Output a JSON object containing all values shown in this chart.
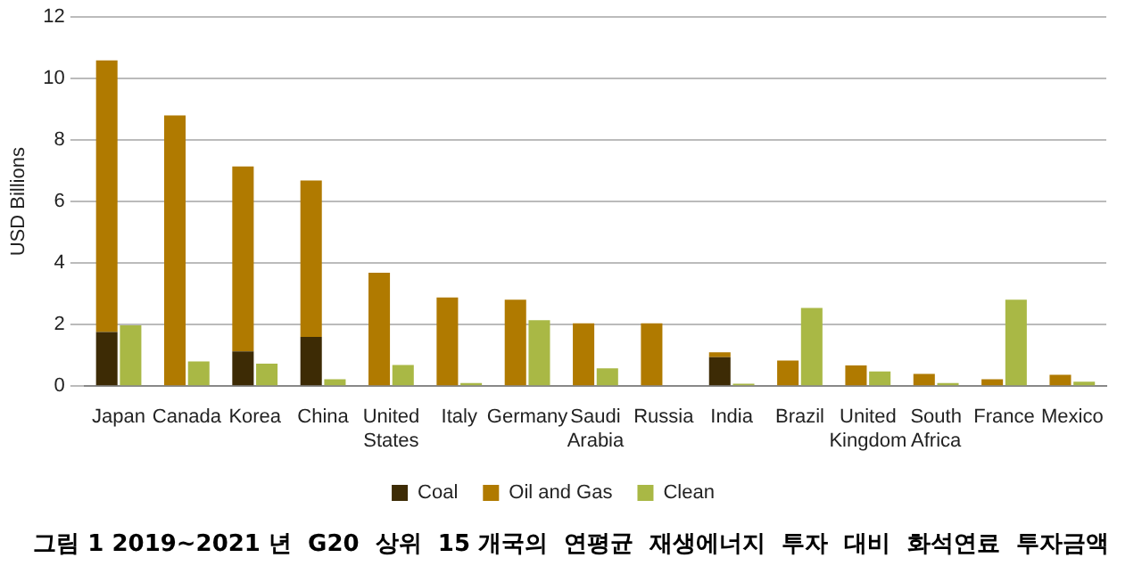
{
  "chart_data": {
    "type": "bar",
    "title": "그림 1 2019~2021 년  G20  상위  15 개국의  연평균  재생에너지  투자  대비  화석연료  투자금액",
    "ylabel": "USD Billions",
    "categories": [
      "Japan",
      "Canada",
      "Korea",
      "China",
      "United States",
      "Italy",
      "Germany",
      "Saudi Arabia",
      "Russia",
      "India",
      "Brazil",
      "United Kingdom",
      "South Africa",
      "France",
      "Mexico"
    ],
    "series": [
      {
        "name": "Coal",
        "color": "#3d2b05",
        "values": [
          1.76,
          0,
          1.13,
          1.6,
          0,
          0,
          0,
          0,
          0,
          0.94,
          0,
          0,
          0,
          0,
          0
        ]
      },
      {
        "name": "Oil and Gas",
        "color": "#b07a00",
        "base": [
          1.76,
          0,
          1.13,
          1.6,
          0,
          0,
          0,
          0,
          0,
          0.94,
          0,
          0,
          0,
          0,
          0
        ],
        "values": [
          8.83,
          8.8,
          6.01,
          5.09,
          3.69,
          2.88,
          2.81,
          2.04,
          2.04,
          0.16,
          0.83,
          0.67,
          0.4,
          0.22,
          0.37
        ]
      },
      {
        "name": "Clean",
        "color": "#a9b845",
        "values": [
          1.98,
          0.8,
          0.73,
          0.22,
          0.69,
          0.1,
          2.14,
          0.58,
          0,
          0.08,
          2.54,
          0.48,
          0.1,
          2.81,
          0.14
        ]
      }
    ],
    "ylim": [
      0,
      12
    ],
    "yticks": [
      0,
      2,
      4,
      6,
      8,
      10,
      12
    ],
    "grid": "y",
    "legend": "bottom"
  }
}
